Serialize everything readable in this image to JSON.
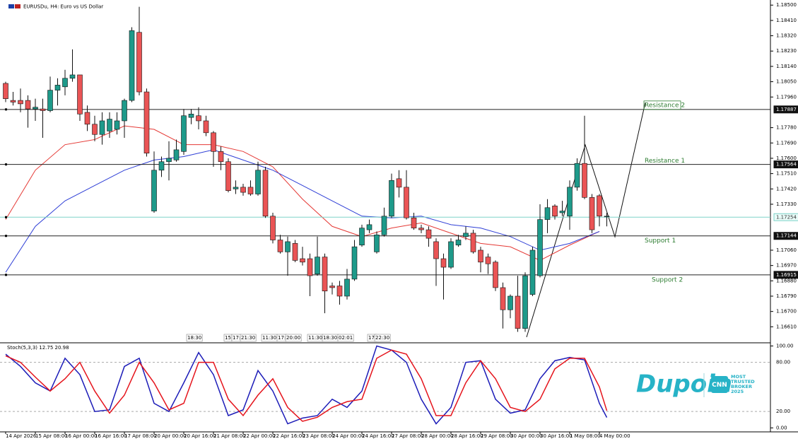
{
  "chart_data": {
    "type": "candlestick",
    "title": "EURUSDu, H4: Euro vs US Dollar",
    "ylim": [
      1.1652,
      1.1853
    ],
    "yticks": [
      {
        "value": 1.185,
        "label": "1.18500"
      },
      {
        "value": 1.1841,
        "label": "1.18410"
      },
      {
        "value": 1.1832,
        "label": "1.18320"
      },
      {
        "value": 1.1823,
        "label": "1.18230"
      },
      {
        "value": 1.1814,
        "label": "1.18140"
      },
      {
        "value": 1.1805,
        "label": "1.18050"
      },
      {
        "value": 1.1796,
        "label": "1.17960"
      },
      {
        "value": 1.1778,
        "label": "1.17780"
      },
      {
        "value": 1.1769,
        "label": "1.17690"
      },
      {
        "value": 1.176,
        "label": "1.17600"
      },
      {
        "value": 1.1751,
        "label": "1.17510"
      },
      {
        "value": 1.1742,
        "label": "1.17420"
      },
      {
        "value": 1.1733,
        "label": "1.17330"
      },
      {
        "value": 1.1706,
        "label": "1.17060"
      },
      {
        "value": 1.1697,
        "label": "1.16970"
      },
      {
        "value": 1.1688,
        "label": "1.16880"
      },
      {
        "value": 1.1679,
        "label": "1.16790"
      },
      {
        "value": 1.167,
        "label": "1.16700"
      },
      {
        "value": 1.1661,
        "label": "1.16610"
      }
    ],
    "levels": [
      {
        "value": 1.17887,
        "name": "Resistance 2"
      },
      {
        "value": 1.17564,
        "name": "Resistance 1"
      },
      {
        "value": 1.17254
      },
      {
        "value": 1.17144,
        "name": "Support 1"
      },
      {
        "value": 1.16915,
        "name": "Support 2"
      }
    ],
    "up_color": "#1e9a8a",
    "down_color": "#ea5455",
    "open": [
      1.1804,
      1.1794,
      1.1794,
      1.1794,
      1.1789,
      1.1789,
      1.1788,
      1.18,
      1.1802,
      1.1807,
      1.1809,
      1.1787,
      1.178,
      1.1774,
      1.1776,
      1.1777,
      1.1782,
      1.1794,
      1.1834,
      1.1799,
      1.1729,
      1.1753,
      1.1758,
      1.1759,
      1.1764,
      1.1784,
      1.1785,
      1.1782,
      1.1775,
      1.1764,
      1.1758,
      1.1742,
      1.1743,
      1.1743,
      1.1739,
      1.1753,
      1.1726,
      1.1712,
      1.1705,
      1.171,
      1.1701,
      1.1701,
      1.1692,
      1.1702,
      1.1685,
      1.1685,
      1.1679,
      1.1689,
      1.1709,
      1.1718,
      1.1705,
      1.1715,
      1.1726,
      1.1748,
      1.1743,
      1.1725,
      1.1719,
      1.1718,
      1.1711,
      1.1701,
      1.1696,
      1.1709,
      1.1714,
      1.1716,
      1.1706,
      1.1702,
      1.1699,
      1.1684,
      1.1671,
      1.1679,
      1.166,
      1.168,
      1.1691,
      1.1724,
      1.1732,
      1.1728,
      1.1726,
      1.1743,
      1.1757,
      1.1737,
      1.1738,
      1.1726
    ],
    "high": [
      1.1805,
      1.1799,
      1.1801,
      1.1797,
      1.1795,
      1.1795,
      1.1808,
      1.1807,
      1.1812,
      1.1824,
      1.1809,
      1.1791,
      1.1785,
      1.1787,
      1.1787,
      1.1787,
      1.1795,
      1.1837,
      1.1849,
      1.1801,
      1.1764,
      1.1761,
      1.177,
      1.1771,
      1.1789,
      1.1789,
      1.179,
      1.1785,
      1.1776,
      1.1767,
      1.176,
      1.1747,
      1.1745,
      1.1747,
      1.1758,
      1.1755,
      1.1728,
      1.1715,
      1.1714,
      1.1712,
      1.1708,
      1.1704,
      1.1714,
      1.1704,
      1.1687,
      1.1688,
      1.1695,
      1.1712,
      1.1721,
      1.1724,
      1.1717,
      1.1731,
      1.1751,
      1.1753,
      1.1753,
      1.1728,
      1.1721,
      1.172,
      1.1713,
      1.1704,
      1.1713,
      1.1715,
      1.172,
      1.1718,
      1.1708,
      1.1704,
      1.17,
      1.1687,
      1.168,
      1.1691,
      1.1693,
      1.1708,
      1.1733,
      1.1736,
      1.1733,
      1.1735,
      1.1747,
      1.176,
      1.1785,
      1.1739,
      1.1739,
      1.1728
    ],
    "low": [
      1.1793,
      1.1791,
      1.1787,
      1.1778,
      1.1782,
      1.1772,
      1.1787,
      1.1791,
      1.1797,
      1.1805,
      1.1782,
      1.1776,
      1.177,
      1.1768,
      1.1772,
      1.1774,
      1.1772,
      1.1793,
      1.1797,
      1.1761,
      1.1728,
      1.1749,
      1.1747,
      1.1758,
      1.1762,
      1.178,
      1.1777,
      1.1773,
      1.1755,
      1.1753,
      1.174,
      1.1739,
      1.1738,
      1.1738,
      1.1738,
      1.1725,
      1.171,
      1.1704,
      1.1691,
      1.1699,
      1.1697,
      1.1679,
      1.1691,
      1.1669,
      1.168,
      1.1674,
      1.1677,
      1.1688,
      1.1708,
      1.1716,
      1.1704,
      1.1714,
      1.1725,
      1.1737,
      1.1724,
      1.1718,
      1.1716,
      1.1708,
      1.1685,
      1.1677,
      1.1695,
      1.1708,
      1.1712,
      1.1704,
      1.1693,
      1.1692,
      1.1682,
      1.166,
      1.1666,
      1.1658,
      1.1658,
      1.1679,
      1.169,
      1.1716,
      1.1724,
      1.1726,
      1.1718,
      1.1741,
      1.1736,
      1.1716,
      1.172,
      1.172
    ],
    "close": [
      1.1795,
      1.1793,
      1.1792,
      1.1789,
      1.179,
      1.1788,
      1.18,
      1.1803,
      1.1807,
      1.1809,
      1.1786,
      1.178,
      1.1774,
      1.1782,
      1.1783,
      1.1782,
      1.1794,
      1.1835,
      1.1799,
      1.1763,
      1.1753,
      1.1758,
      1.176,
      1.1765,
      1.1785,
      1.1786,
      1.1782,
      1.1775,
      1.1764,
      1.1758,
      1.1741,
      1.1743,
      1.174,
      1.1739,
      1.1753,
      1.1726,
      1.1712,
      1.1705,
      1.1711,
      1.17,
      1.1699,
      1.1691,
      1.1702,
      1.1682,
      1.1684,
      1.1679,
      1.1689,
      1.1708,
      1.1719,
      1.1721,
      1.1715,
      1.1726,
      1.1747,
      1.1743,
      1.1725,
      1.1719,
      1.1718,
      1.1713,
      1.1701,
      1.1696,
      1.1711,
      1.1712,
      1.1716,
      1.1705,
      1.1699,
      1.1698,
      1.1684,
      1.1671,
      1.1679,
      1.166,
      1.1691,
      1.1706,
      1.1724,
      1.1731,
      1.1726,
      1.1729,
      1.1743,
      1.1757,
      1.1737,
      1.1718,
      1.1726,
      1.1726
    ],
    "moving_averages": [
      {
        "color": "#e53935",
        "x": [
          0,
          4,
          8,
          12,
          16,
          20,
          24,
          28,
          32,
          36,
          40,
          44,
          48,
          52,
          56,
          60,
          64,
          68,
          72,
          76,
          80
        ],
        "values": [
          1.1724,
          1.1753,
          1.1768,
          1.1771,
          1.1779,
          1.1777,
          1.1768,
          1.1768,
          1.1764,
          1.1755,
          1.1736,
          1.172,
          1.1714,
          1.1719,
          1.1722,
          1.1716,
          1.171,
          1.1708,
          1.17,
          1.1709,
          1.1717
        ]
      },
      {
        "color": "#2f3fd6",
        "x": [
          0,
          4,
          8,
          12,
          16,
          20,
          24,
          28,
          32,
          36,
          40,
          44,
          48,
          52,
          56,
          60,
          64,
          68,
          72,
          76,
          80
        ],
        "values": [
          1.1693,
          1.172,
          1.1735,
          1.1744,
          1.1753,
          1.1759,
          1.1761,
          1.1765,
          1.1759,
          1.1753,
          1.1744,
          1.1735,
          1.1726,
          1.1725,
          1.1726,
          1.1721,
          1.1719,
          1.1714,
          1.1706,
          1.171,
          1.1717
        ]
      }
    ],
    "session_labels": [
      "18:30",
      "15",
      "17:",
      "21:30",
      "11:30",
      "17:",
      "20:00",
      "11:30",
      "18:30",
      "02:01",
      "17:",
      "22:30"
    ],
    "x_labels": [
      "14 Apr 2026",
      "15 Apr 08:00",
      "16 Apr 00:00",
      "16 Apr 16:00",
      "17 Apr 08:00",
      "20 Apr 00:00",
      "20 Apr 16:00",
      "21 Apr 08:00",
      "22 Apr 00:00",
      "22 Apr 16:00",
      "23 Apr 08:00",
      "24 Apr 00:00",
      "24 Apr 16:00",
      "27 Apr 08:00",
      "28 Apr 00:00",
      "28 Apr 16:00",
      "29 Apr 08:00",
      "30 Apr 00:00",
      "30 Apr 16:00",
      "1 May 08:00",
      "4 May 00:00"
    ],
    "stochastic": {
      "label": "Stoch(5,3,3) 12.75 20.98",
      "ylim": [
        -4,
        103
      ],
      "yticks": [
        {
          "value": 100,
          "label": "100.00"
        },
        {
          "value": 80,
          "label": "80.00"
        },
        {
          "value": 20,
          "label": "20.00"
        },
        {
          "value": 0,
          "label": "0.00"
        }
      ],
      "series": [
        {
          "color": "#1c1cb8",
          "x": [
            0,
            2,
            4,
            6,
            8,
            10,
            12,
            14,
            16,
            18,
            20,
            22,
            24,
            26,
            28,
            30,
            32,
            34,
            36,
            38,
            40,
            42,
            44,
            46,
            48,
            50,
            52,
            54,
            56,
            58,
            60,
            62,
            64,
            66,
            68,
            70,
            72,
            74,
            76,
            78,
            80,
            81
          ],
          "values": [
            90,
            75,
            55,
            45,
            85,
            65,
            20,
            22,
            75,
            85,
            30,
            20,
            55,
            92,
            65,
            15,
            22,
            70,
            45,
            5,
            12,
            15,
            35,
            25,
            45,
            100,
            95,
            80,
            35,
            5,
            25,
            80,
            82,
            35,
            18,
            22,
            60,
            82,
            86,
            83,
            30,
            12.75
          ]
        },
        {
          "color": "#e5141c",
          "x": [
            0,
            2,
            4,
            6,
            8,
            10,
            12,
            14,
            16,
            18,
            20,
            22,
            24,
            26,
            28,
            30,
            32,
            34,
            36,
            38,
            40,
            42,
            44,
            46,
            48,
            50,
            52,
            54,
            56,
            58,
            60,
            62,
            64,
            66,
            68,
            70,
            72,
            74,
            76,
            78,
            80,
            81
          ],
          "values": [
            88,
            80,
            62,
            45,
            60,
            80,
            45,
            18,
            40,
            80,
            55,
            22,
            30,
            80,
            80,
            35,
            15,
            40,
            60,
            25,
            8,
            13,
            25,
            32,
            35,
            85,
            95,
            90,
            60,
            15,
            15,
            55,
            82,
            60,
            25,
            20,
            35,
            72,
            85,
            85,
            50,
            20.98
          ]
        }
      ]
    },
    "logo": {
      "brand": "Dupoin",
      "badge": "CNN",
      "award": [
        "MOST",
        "TRUSTED",
        "BROKER",
        "2025"
      ]
    }
  }
}
